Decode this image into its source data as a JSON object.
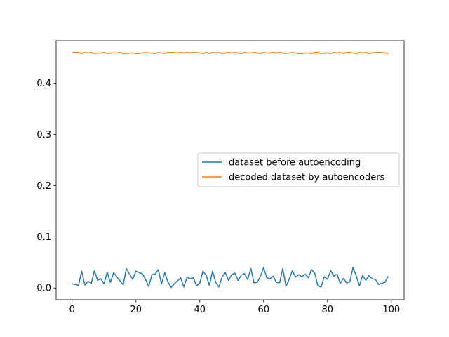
{
  "chart_data": {
    "type": "line",
    "title": "",
    "xlabel": "",
    "ylabel": "",
    "xlim": [
      -5,
      104
    ],
    "ylim": [
      -0.023,
      0.483
    ],
    "xticks": [
      0,
      20,
      40,
      60,
      80,
      100
    ],
    "yticks": [
      0.0,
      0.1,
      0.2,
      0.3,
      0.4
    ],
    "xtick_labels": [
      "0",
      "20",
      "40",
      "60",
      "80",
      "100"
    ],
    "ytick_labels": [
      "0.0",
      "0.1",
      "0.2",
      "0.3",
      "0.4"
    ],
    "legend_position": "center-right",
    "grid": false,
    "series": [
      {
        "name": "dataset before autoencoding",
        "color": "#1f77b4",
        "x": [
          0,
          1,
          2,
          3,
          4,
          5,
          6,
          7,
          8,
          9,
          10,
          11,
          12,
          13,
          14,
          15,
          16,
          17,
          18,
          19,
          20,
          21,
          22,
          23,
          24,
          25,
          26,
          27,
          28,
          29,
          30,
          31,
          32,
          33,
          34,
          35,
          36,
          37,
          38,
          39,
          40,
          41,
          42,
          43,
          44,
          45,
          46,
          47,
          48,
          49,
          50,
          51,
          52,
          53,
          54,
          55,
          56,
          57,
          58,
          59,
          60,
          61,
          62,
          63,
          64,
          65,
          66,
          67,
          68,
          69,
          70,
          71,
          72,
          73,
          74,
          75,
          76,
          77,
          78,
          79,
          80,
          81,
          82,
          83,
          84,
          85,
          86,
          87,
          88,
          89,
          90,
          91,
          92,
          93,
          94,
          95,
          96,
          97,
          98,
          99
        ],
        "values": [
          0.008,
          0.007,
          0.005,
          0.033,
          0.006,
          0.013,
          0.009,
          0.034,
          0.015,
          0.018,
          0.008,
          0.031,
          0.011,
          0.03,
          0.022,
          0.014,
          0.006,
          0.038,
          0.027,
          0.017,
          0.033,
          0.03,
          0.028,
          0.017,
          0.003,
          0.026,
          0.027,
          0.036,
          0.008,
          0.03,
          0.012,
          0.001,
          0.008,
          0.014,
          0.02,
          0.002,
          0.021,
          0.018,
          0.02,
          0.004,
          0.01,
          0.033,
          0.025,
          0.005,
          0.033,
          0.011,
          0.002,
          0.022,
          0.03,
          0.015,
          0.026,
          0.029,
          0.015,
          0.025,
          0.028,
          0.017,
          0.038,
          0.01,
          0.011,
          0.023,
          0.04,
          0.02,
          0.018,
          0.023,
          0.011,
          0.01,
          0.038,
          0.003,
          0.017,
          0.034,
          0.021,
          0.026,
          0.022,
          0.027,
          0.02,
          0.036,
          0.029,
          0.004,
          0.002,
          0.022,
          0.017,
          0.034,
          0.023,
          0.027,
          0.009,
          0.019,
          0.01,
          0.012,
          0.04,
          0.024,
          0.004,
          0.025,
          0.015,
          0.024,
          0.018,
          0.017,
          0.007,
          0.009,
          0.011,
          0.023
        ]
      },
      {
        "name": "decoded dataset by autoencoders",
        "color": "#ff7f0e",
        "x": [
          0,
          1,
          2,
          3,
          4,
          5,
          6,
          7,
          8,
          9,
          10,
          11,
          12,
          13,
          14,
          15,
          16,
          17,
          18,
          19,
          20,
          21,
          22,
          23,
          24,
          25,
          26,
          27,
          28,
          29,
          30,
          31,
          32,
          33,
          34,
          35,
          36,
          37,
          38,
          39,
          40,
          41,
          42,
          43,
          44,
          45,
          46,
          47,
          48,
          49,
          50,
          51,
          52,
          53,
          54,
          55,
          56,
          57,
          58,
          59,
          60,
          61,
          62,
          63,
          64,
          65,
          66,
          67,
          68,
          69,
          70,
          71,
          72,
          73,
          74,
          75,
          76,
          77,
          78,
          79,
          80,
          81,
          82,
          83,
          84,
          85,
          86,
          87,
          88,
          89,
          90,
          91,
          92,
          93,
          94,
          95,
          96,
          97,
          98,
          99
        ],
        "values": [
          0.46,
          0.46,
          0.46,
          0.458,
          0.46,
          0.459,
          0.46,
          0.458,
          0.459,
          0.459,
          0.46,
          0.458,
          0.459,
          0.459,
          0.459,
          0.46,
          0.458,
          0.458,
          0.459,
          0.459,
          0.458,
          0.458,
          0.459,
          0.46,
          0.459,
          0.459,
          0.458,
          0.46,
          0.459,
          0.458,
          0.46,
          0.46,
          0.46,
          0.459,
          0.46,
          0.459,
          0.46,
          0.459,
          0.46,
          0.46,
          0.459,
          0.458,
          0.46,
          0.458,
          0.46,
          0.459,
          0.46,
          0.458,
          0.459,
          0.46,
          0.459,
          0.46,
          0.459,
          0.458,
          0.46,
          0.459,
          0.459,
          0.46,
          0.459,
          0.458,
          0.46,
          0.459,
          0.459,
          0.46,
          0.459,
          0.46,
          0.459,
          0.458,
          0.459,
          0.46,
          0.459,
          0.458,
          0.458,
          0.459,
          0.459,
          0.458,
          0.46,
          0.46,
          0.458,
          0.459,
          0.459,
          0.458,
          0.46,
          0.459,
          0.46,
          0.458,
          0.46,
          0.46,
          0.459,
          0.458,
          0.46,
          0.459,
          0.46,
          0.458,
          0.459,
          0.46,
          0.46,
          0.46,
          0.459,
          0.458
        ]
      }
    ]
  }
}
